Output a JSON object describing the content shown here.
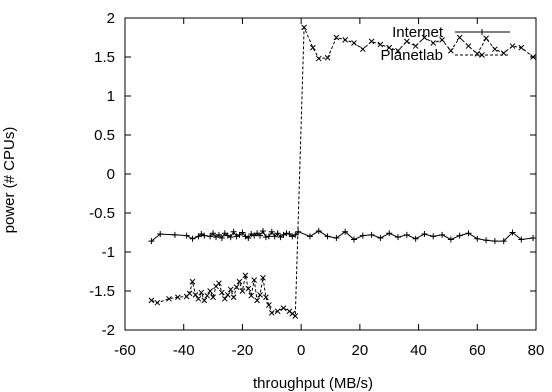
{
  "chart_data": {
    "type": "line",
    "title": "",
    "xlabel": "throughput (MB/s)",
    "ylabel": "power (# CPUs)",
    "xlim": [
      -60,
      80
    ],
    "ylim": [
      -2,
      2
    ],
    "xticks": [
      -60,
      -40,
      -20,
      0,
      20,
      40,
      60,
      80
    ],
    "yticks": [
      -2,
      -1.5,
      -1,
      -0.5,
      0,
      0.5,
      1,
      1.5,
      2
    ],
    "grid": false,
    "legend_position": "top-right",
    "series": [
      {
        "name": "Internet",
        "marker": "plus",
        "line_style": "solid",
        "x": [
          -51,
          -48,
          -43,
          -39,
          -37,
          -35,
          -34,
          -33,
          -31,
          -30,
          -29,
          -28,
          -27,
          -26,
          -25,
          -24,
          -23,
          -22,
          -21,
          -20,
          -19,
          -18,
          -17,
          -16,
          -15,
          -14,
          -13,
          -12,
          -11,
          -10,
          -9,
          -8,
          -7,
          -6,
          -5,
          -4,
          -3,
          -2,
          -1,
          3,
          6,
          9,
          12,
          15,
          18,
          21,
          24,
          27,
          30,
          33,
          36,
          39,
          42,
          45,
          48,
          51,
          54,
          57,
          60,
          63,
          66,
          69,
          72,
          75,
          79
        ],
        "y": [
          -0.86,
          -0.77,
          -0.78,
          -0.79,
          -0.83,
          -0.8,
          -0.77,
          -0.79,
          -0.8,
          -0.76,
          -0.81,
          -0.78,
          -0.82,
          -0.76,
          -0.79,
          -0.81,
          -0.74,
          -0.8,
          -0.78,
          -0.75,
          -0.8,
          -0.82,
          -0.77,
          -0.79,
          -0.76,
          -0.79,
          -0.73,
          -0.81,
          -0.8,
          -0.74,
          -0.8,
          -0.76,
          -0.81,
          -0.78,
          -0.76,
          -0.77,
          -0.8,
          -0.78,
          -0.74,
          -0.8,
          -0.73,
          -0.8,
          -0.82,
          -0.74,
          -0.84,
          -0.79,
          -0.78,
          -0.82,
          -0.76,
          -0.81,
          -0.78,
          -0.83,
          -0.77,
          -0.8,
          -0.78,
          -0.84,
          -0.79,
          -0.76,
          -0.83,
          -0.85,
          -0.86,
          -0.86,
          -0.75,
          -0.84,
          -0.82
        ]
      },
      {
        "name": "Planetlab",
        "marker": "cross",
        "line_style": "dashed",
        "x": [
          -51,
          -49,
          -45,
          -42,
          -39,
          -38,
          -37,
          -36,
          -35,
          -34,
          -33,
          -32,
          -31,
          -30,
          -29,
          -28,
          -27,
          -26,
          -25,
          -24,
          -23,
          -22,
          -21,
          -20,
          -19,
          -18,
          -17,
          -16,
          -15,
          -14,
          -13,
          -12,
          -11,
          -10,
          -8,
          -6,
          -4,
          -3,
          -2,
          1,
          4,
          6,
          9,
          12,
          15,
          18,
          21,
          24,
          27,
          30,
          33,
          36,
          39,
          42,
          45,
          48,
          51,
          54,
          57,
          60,
          63,
          66,
          69,
          72,
          75,
          79
        ],
        "y": [
          -1.62,
          -1.65,
          -1.6,
          -1.58,
          -1.57,
          -1.53,
          -1.38,
          -1.55,
          -1.6,
          -1.52,
          -1.62,
          -1.56,
          -1.5,
          -1.58,
          -1.44,
          -1.4,
          -1.52,
          -1.6,
          -1.55,
          -1.48,
          -1.58,
          -1.45,
          -1.38,
          -1.5,
          -1.3,
          -1.47,
          -1.56,
          -1.36,
          -1.62,
          -1.55,
          -1.33,
          -1.58,
          -1.68,
          -1.78,
          -1.76,
          -1.72,
          -1.76,
          -1.79,
          -1.82,
          1.88,
          1.62,
          1.48,
          1.49,
          1.75,
          1.72,
          1.68,
          1.6,
          1.7,
          1.66,
          1.62,
          1.58,
          1.7,
          1.64,
          1.75,
          1.68,
          1.72,
          1.58,
          1.75,
          1.64,
          1.54,
          1.74,
          1.6,
          1.55,
          1.64,
          1.62,
          1.5
        ]
      }
    ]
  }
}
